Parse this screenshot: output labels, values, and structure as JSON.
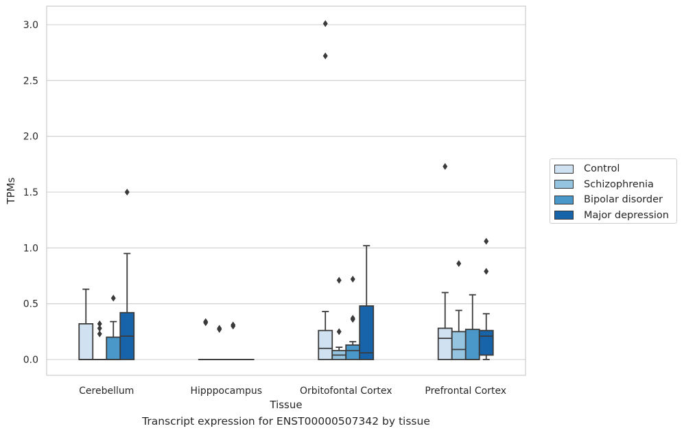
{
  "caption": "Transcript expression for ENST00000507342 by tissue",
  "chart_data": {
    "type": "box",
    "xlabel": "Tissue",
    "ylabel": "TPMs",
    "ylim": [
      -0.15,
      3.17
    ],
    "yticks": [
      "0.0",
      "0.5",
      "1.0",
      "1.5",
      "2.0",
      "2.5",
      "3.0"
    ],
    "grid": true,
    "legend_position": "right",
    "categories": [
      "Cerebellum",
      "Hipppocampus",
      "Orbitofontal Cortex",
      "Prefrontal Cortex"
    ],
    "series": [
      {
        "name": "Control",
        "color": "#d0e1f2",
        "boxes": [
          {
            "q1": 0.0,
            "median": 0.0,
            "q3": 0.32,
            "whislo": 0.0,
            "whishi": 0.63,
            "fliers": []
          },
          {
            "q1": 0.0,
            "median": 0.0,
            "q3": 0.0,
            "whislo": 0.0,
            "whishi": 0.0,
            "fliers": [
              0.33,
              0.34
            ]
          },
          {
            "q1": 0.0,
            "median": 0.1,
            "q3": 0.26,
            "whislo": 0.0,
            "whishi": 0.43,
            "fliers": [
              2.72,
              3.01
            ]
          },
          {
            "q1": 0.0,
            "median": 0.19,
            "q3": 0.28,
            "whislo": 0.0,
            "whishi": 0.6,
            "fliers": [
              1.73
            ]
          }
        ]
      },
      {
        "name": "Schizophrenia",
        "color": "#94c4df",
        "boxes": [
          {
            "q1": 0.0,
            "median": 0.0,
            "q3": 0.0,
            "whislo": 0.0,
            "whishi": 0.0,
            "fliers": [
              0.23,
              0.28,
              0.32
            ]
          },
          {
            "q1": 0.0,
            "median": 0.0,
            "q3": 0.0,
            "whislo": 0.0,
            "whishi": 0.0,
            "fliers": [
              0.27,
              0.28
            ]
          },
          {
            "q1": 0.0,
            "median": 0.04,
            "q3": 0.08,
            "whislo": 0.0,
            "whishi": 0.11,
            "fliers": [
              0.25,
              0.71
            ]
          },
          {
            "q1": 0.0,
            "median": 0.09,
            "q3": 0.25,
            "whislo": 0.0,
            "whishi": 0.44,
            "fliers": [
              0.86
            ]
          }
        ]
      },
      {
        "name": "Bipolar disorder",
        "color": "#4a98c9",
        "boxes": [
          {
            "q1": 0.0,
            "median": 0.0,
            "q3": 0.2,
            "whislo": 0.0,
            "whishi": 0.34,
            "fliers": [
              0.55
            ]
          },
          {
            "q1": 0.0,
            "median": 0.0,
            "q3": 0.0,
            "whislo": 0.0,
            "whishi": 0.0,
            "fliers": [
              0.3,
              0.31
            ]
          },
          {
            "q1": 0.0,
            "median": 0.08,
            "q3": 0.13,
            "whislo": 0.0,
            "whishi": 0.16,
            "fliers": [
              0.36,
              0.37,
              0.72
            ]
          },
          {
            "q1": 0.0,
            "median": 0.0,
            "q3": 0.27,
            "whislo": 0.0,
            "whishi": 0.58,
            "fliers": []
          }
        ]
      },
      {
        "name": "Major depression",
        "color": "#1764ab",
        "boxes": [
          {
            "q1": 0.0,
            "median": 0.21,
            "q3": 0.42,
            "whislo": 0.0,
            "whishi": 0.95,
            "fliers": [
              1.5
            ]
          },
          {
            "q1": 0.0,
            "median": 0.0,
            "q3": 0.0,
            "whislo": 0.0,
            "whishi": 0.0,
            "fliers": []
          },
          {
            "q1": 0.0,
            "median": 0.06,
            "q3": 0.48,
            "whislo": 0.0,
            "whishi": 1.02,
            "fliers": []
          },
          {
            "q1": 0.04,
            "median": 0.21,
            "q3": 0.26,
            "whislo": 0.0,
            "whishi": 0.41,
            "fliers": [
              0.79,
              1.06
            ]
          }
        ]
      }
    ]
  }
}
